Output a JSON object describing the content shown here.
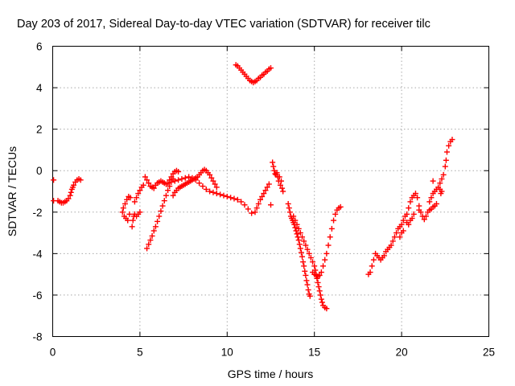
{
  "chart_data": {
    "type": "scatter",
    "title": "Day 203 of 2017, Sidereal Day-to-day VTEC variation (SDTVAR) for receiver tilc",
    "xlabel": "GPS time / hours",
    "ylabel": "SDTVAR / TECUs",
    "xlim": [
      0,
      25
    ],
    "ylim": [
      -8,
      6
    ],
    "xticks": [
      "0",
      "5",
      "10",
      "15",
      "20",
      "25"
    ],
    "yticks": [
      "-8",
      "-6",
      "-4",
      "-2",
      "0",
      "2",
      "4",
      "6"
    ],
    "grid": true,
    "marker": "plus",
    "color": "#ff0000",
    "series": [
      {
        "points": [
          [
            0.05,
            -0.45
          ],
          [
            0.05,
            -1.45
          ],
          [
            0.3,
            -1.45
          ],
          [
            0.4,
            -1.5
          ],
          [
            0.5,
            -1.55
          ],
          [
            0.6,
            -1.55
          ],
          [
            0.7,
            -1.5
          ],
          [
            0.8,
            -1.45
          ],
          [
            0.9,
            -1.35
          ],
          [
            1.0,
            -1.2
          ],
          [
            1.05,
            -1.05
          ],
          [
            1.1,
            -0.9
          ],
          [
            1.15,
            -0.8
          ],
          [
            1.2,
            -0.7
          ],
          [
            1.3,
            -0.55
          ],
          [
            1.4,
            -0.45
          ],
          [
            1.5,
            -0.4
          ],
          [
            1.6,
            -0.45
          ],
          [
            4.0,
            -2.0
          ],
          [
            4.05,
            -1.8
          ],
          [
            4.1,
            -2.2
          ],
          [
            4.15,
            -1.6
          ],
          [
            4.2,
            -2.3
          ],
          [
            4.25,
            -1.4
          ],
          [
            4.3,
            -2.4
          ],
          [
            4.35,
            -1.25
          ],
          [
            4.4,
            -2.1
          ],
          [
            4.45,
            -1.3
          ],
          [
            4.55,
            -2.7
          ],
          [
            4.6,
            -2.4
          ],
          [
            4.65,
            -2.2
          ],
          [
            4.7,
            -2.1
          ],
          [
            4.8,
            -2.2
          ],
          [
            4.9,
            -2.1
          ],
          [
            5.0,
            -2.0
          ],
          [
            4.7,
            -1.5
          ],
          [
            4.8,
            -1.3
          ],
          [
            4.9,
            -1.1
          ],
          [
            5.0,
            -0.95
          ],
          [
            5.1,
            -0.8
          ],
          [
            5.2,
            -0.7
          ],
          [
            5.3,
            -0.3
          ],
          [
            5.4,
            -0.45
          ],
          [
            5.5,
            -0.6
          ],
          [
            5.6,
            -0.75
          ],
          [
            5.7,
            -0.8
          ],
          [
            5.8,
            -0.85
          ],
          [
            5.4,
            -3.75
          ],
          [
            5.5,
            -3.55
          ],
          [
            5.6,
            -3.35
          ],
          [
            5.7,
            -3.15
          ],
          [
            5.8,
            -2.9
          ],
          [
            5.9,
            -2.7
          ],
          [
            6.0,
            -2.45
          ],
          [
            6.1,
            -2.2
          ],
          [
            6.2,
            -1.95
          ],
          [
            6.3,
            -1.7
          ],
          [
            6.4,
            -1.45
          ],
          [
            6.5,
            -1.2
          ],
          [
            6.6,
            -0.95
          ],
          [
            6.7,
            -0.75
          ],
          [
            6.8,
            -0.55
          ],
          [
            6.9,
            -0.4
          ],
          [
            5.9,
            -0.7
          ],
          [
            6.0,
            -0.6
          ],
          [
            6.1,
            -0.55
          ],
          [
            6.2,
            -0.5
          ],
          [
            6.3,
            -0.55
          ],
          [
            6.4,
            -0.6
          ],
          [
            6.5,
            -0.65
          ],
          [
            6.6,
            -0.6
          ],
          [
            6.7,
            -0.45
          ],
          [
            6.8,
            -0.3
          ],
          [
            6.9,
            -0.15
          ],
          [
            7.0,
            -0.05
          ],
          [
            7.1,
            0.0
          ],
          [
            7.2,
            -0.05
          ],
          [
            6.9,
            -1.2
          ],
          [
            7.0,
            -1.05
          ],
          [
            7.1,
            -0.95
          ],
          [
            7.2,
            -0.85
          ],
          [
            7.3,
            -0.8
          ],
          [
            7.4,
            -0.75
          ],
          [
            7.5,
            -0.7
          ],
          [
            7.6,
            -0.65
          ],
          [
            7.7,
            -0.6
          ],
          [
            7.8,
            -0.55
          ],
          [
            7.9,
            -0.5
          ],
          [
            8.0,
            -0.45
          ],
          [
            8.1,
            -0.4
          ],
          [
            8.2,
            -0.35
          ],
          [
            8.3,
            -0.3
          ],
          [
            8.4,
            -0.2
          ],
          [
            8.5,
            -0.1
          ],
          [
            8.6,
            0.0
          ],
          [
            8.7,
            0.05
          ],
          [
            8.8,
            0.0
          ],
          [
            8.9,
            -0.1
          ],
          [
            9.0,
            -0.2
          ],
          [
            9.1,
            -0.35
          ],
          [
            9.2,
            -0.5
          ],
          [
            9.3,
            -0.65
          ],
          [
            9.4,
            -0.8
          ],
          [
            7.0,
            -0.5
          ],
          [
            7.2,
            -0.45
          ],
          [
            7.4,
            -0.4
          ],
          [
            7.6,
            -0.35
          ],
          [
            7.8,
            -0.3
          ],
          [
            8.0,
            -0.35
          ],
          [
            8.2,
            -0.45
          ],
          [
            8.4,
            -0.6
          ],
          [
            8.6,
            -0.75
          ],
          [
            8.8,
            -0.9
          ],
          [
            9.0,
            -1.0
          ],
          [
            9.2,
            -1.05
          ],
          [
            9.4,
            -1.1
          ],
          [
            9.6,
            -1.15
          ],
          [
            9.8,
            -1.2
          ],
          [
            10.0,
            -1.25
          ],
          [
            10.2,
            -1.3
          ],
          [
            10.4,
            -1.35
          ],
          [
            10.6,
            -1.4
          ],
          [
            10.8,
            -1.5
          ],
          [
            11.0,
            -1.65
          ],
          [
            11.2,
            -1.85
          ],
          [
            11.4,
            -2.05
          ],
          [
            11.6,
            -2.0
          ],
          [
            11.7,
            -1.8
          ],
          [
            11.8,
            -1.6
          ],
          [
            11.9,
            -1.4
          ],
          [
            12.0,
            -1.25
          ],
          [
            12.1,
            -1.1
          ],
          [
            12.2,
            -0.95
          ],
          [
            12.3,
            -0.8
          ],
          [
            12.4,
            -0.65
          ],
          [
            12.5,
            -1.65
          ],
          [
            10.5,
            5.1
          ],
          [
            10.6,
            5.05
          ],
          [
            10.7,
            4.95
          ],
          [
            10.8,
            4.85
          ],
          [
            10.9,
            4.75
          ],
          [
            11.0,
            4.65
          ],
          [
            11.1,
            4.55
          ],
          [
            11.2,
            4.45
          ],
          [
            11.3,
            4.35
          ],
          [
            11.4,
            4.3
          ],
          [
            11.5,
            4.25
          ],
          [
            11.6,
            4.3
          ],
          [
            11.7,
            4.35
          ],
          [
            11.8,
            4.45
          ],
          [
            11.9,
            4.5
          ],
          [
            12.0,
            4.6
          ],
          [
            12.1,
            4.65
          ],
          [
            12.2,
            4.75
          ],
          [
            12.3,
            4.8
          ],
          [
            12.4,
            4.9
          ],
          [
            12.5,
            4.95
          ],
          [
            12.6,
            0.4
          ],
          [
            12.65,
            0.2
          ],
          [
            12.7,
            0.0
          ],
          [
            12.75,
            -0.15
          ],
          [
            12.8,
            -0.2
          ],
          [
            12.85,
            -0.1
          ],
          [
            12.9,
            -0.3
          ],
          [
            12.95,
            -0.5
          ],
          [
            13.0,
            -0.3
          ],
          [
            13.05,
            -0.7
          ],
          [
            13.1,
            -0.5
          ],
          [
            13.15,
            -0.85
          ],
          [
            13.2,
            -1.0
          ],
          [
            13.5,
            -1.6
          ],
          [
            13.55,
            -1.8
          ],
          [
            13.6,
            -2.0
          ],
          [
            13.65,
            -2.2
          ],
          [
            13.7,
            -2.3
          ],
          [
            13.75,
            -2.4
          ],
          [
            13.8,
            -2.5
          ],
          [
            13.85,
            -2.6
          ],
          [
            13.9,
            -2.75
          ],
          [
            13.95,
            -2.9
          ],
          [
            14.0,
            -3.05
          ],
          [
            14.05,
            -3.2
          ],
          [
            14.1,
            -3.35
          ],
          [
            14.15,
            -3.55
          ],
          [
            14.2,
            -3.75
          ],
          [
            14.25,
            -3.95
          ],
          [
            14.3,
            -4.15
          ],
          [
            14.35,
            -4.4
          ],
          [
            14.4,
            -4.6
          ],
          [
            14.45,
            -4.85
          ],
          [
            14.5,
            -5.05
          ],
          [
            14.55,
            -5.3
          ],
          [
            14.6,
            -5.5
          ],
          [
            14.65,
            -5.75
          ],
          [
            14.7,
            -5.95
          ],
          [
            14.75,
            -6.05
          ],
          [
            13.8,
            -2.2
          ],
          [
            13.9,
            -2.4
          ],
          [
            14.0,
            -2.6
          ],
          [
            14.1,
            -2.8
          ],
          [
            14.2,
            -3.0
          ],
          [
            14.3,
            -3.2
          ],
          [
            14.4,
            -3.4
          ],
          [
            14.5,
            -3.6
          ],
          [
            14.6,
            -3.8
          ],
          [
            14.7,
            -4.0
          ],
          [
            14.8,
            -4.2
          ],
          [
            14.9,
            -4.4
          ],
          [
            15.0,
            -4.6
          ],
          [
            15.05,
            -4.8
          ],
          [
            15.1,
            -5.0
          ],
          [
            15.15,
            -5.2
          ],
          [
            15.2,
            -5.4
          ],
          [
            15.25,
            -5.6
          ],
          [
            15.3,
            -5.8
          ],
          [
            15.35,
            -6.0
          ],
          [
            15.4,
            -6.2
          ],
          [
            15.45,
            -6.35
          ],
          [
            15.5,
            -6.5
          ],
          [
            15.6,
            -6.6
          ],
          [
            15.7,
            -6.65
          ],
          [
            14.9,
            -4.9
          ],
          [
            15.0,
            -5.0
          ],
          [
            15.1,
            -5.05
          ],
          [
            15.2,
            -5.1
          ],
          [
            15.3,
            -5.05
          ],
          [
            15.4,
            -4.9
          ],
          [
            15.5,
            -4.6
          ],
          [
            15.6,
            -4.3
          ],
          [
            15.7,
            -4.0
          ],
          [
            15.8,
            -3.6
          ],
          [
            15.9,
            -3.2
          ],
          [
            16.0,
            -2.8
          ],
          [
            16.1,
            -2.4
          ],
          [
            16.2,
            -2.1
          ],
          [
            16.3,
            -1.9
          ],
          [
            16.4,
            -1.8
          ],
          [
            16.5,
            -1.75
          ],
          [
            18.1,
            -5.0
          ],
          [
            18.2,
            -4.9
          ],
          [
            18.3,
            -4.6
          ],
          [
            18.4,
            -4.3
          ],
          [
            18.5,
            -4.0
          ],
          [
            18.6,
            -4.1
          ],
          [
            18.7,
            -4.2
          ],
          [
            18.8,
            -4.3
          ],
          [
            18.9,
            -4.2
          ],
          [
            19.0,
            -4.1
          ],
          [
            19.1,
            -3.9
          ],
          [
            19.2,
            -3.8
          ],
          [
            19.3,
            -3.7
          ],
          [
            19.4,
            -3.6
          ],
          [
            19.5,
            -3.4
          ],
          [
            19.6,
            -3.2
          ],
          [
            19.7,
            -3.0
          ],
          [
            19.8,
            -2.8
          ],
          [
            19.9,
            -2.7
          ],
          [
            20.0,
            -2.6
          ],
          [
            20.1,
            -2.4
          ],
          [
            20.2,
            -2.2
          ],
          [
            20.3,
            -2.1
          ],
          [
            20.4,
            -1.8
          ],
          [
            20.5,
            -1.5
          ],
          [
            20.6,
            -1.3
          ],
          [
            20.7,
            -1.2
          ],
          [
            20.8,
            -1.1
          ],
          [
            20.3,
            -2.5
          ],
          [
            20.4,
            -2.6
          ],
          [
            20.5,
            -2.4
          ],
          [
            20.6,
            -2.3
          ],
          [
            20.7,
            -2.1
          ],
          [
            21.0,
            -1.9
          ],
          [
            21.1,
            -2.0
          ],
          [
            21.2,
            -2.2
          ],
          [
            21.3,
            -2.35
          ],
          [
            21.4,
            -2.2
          ],
          [
            21.5,
            -2.0
          ],
          [
            21.6,
            -1.9
          ],
          [
            21.7,
            -1.85
          ],
          [
            21.8,
            -1.75
          ],
          [
            21.9,
            -1.7
          ],
          [
            22.0,
            -1.6
          ],
          [
            21.6,
            -1.5
          ],
          [
            21.7,
            -1.3
          ],
          [
            21.8,
            -1.1
          ],
          [
            21.9,
            -1.0
          ],
          [
            22.0,
            -0.9
          ],
          [
            22.1,
            -0.8
          ],
          [
            22.2,
            -0.6
          ],
          [
            22.3,
            -0.4
          ],
          [
            22.4,
            -0.2
          ],
          [
            22.5,
            0.2
          ],
          [
            22.55,
            0.5
          ],
          [
            22.6,
            0.9
          ],
          [
            22.7,
            1.2
          ],
          [
            22.8,
            1.4
          ],
          [
            22.9,
            1.5
          ],
          [
            21.8,
            -0.5
          ],
          [
            22.2,
            -0.9
          ],
          [
            22.25,
            -1.1
          ],
          [
            22.3,
            -1.0
          ],
          [
            20.9,
            -1.3
          ],
          [
            21.0,
            -1.7
          ],
          [
            20.1,
            -2.9
          ],
          [
            20.0,
            -3.0
          ],
          [
            19.9,
            -3.2
          ]
        ]
      }
    ]
  }
}
